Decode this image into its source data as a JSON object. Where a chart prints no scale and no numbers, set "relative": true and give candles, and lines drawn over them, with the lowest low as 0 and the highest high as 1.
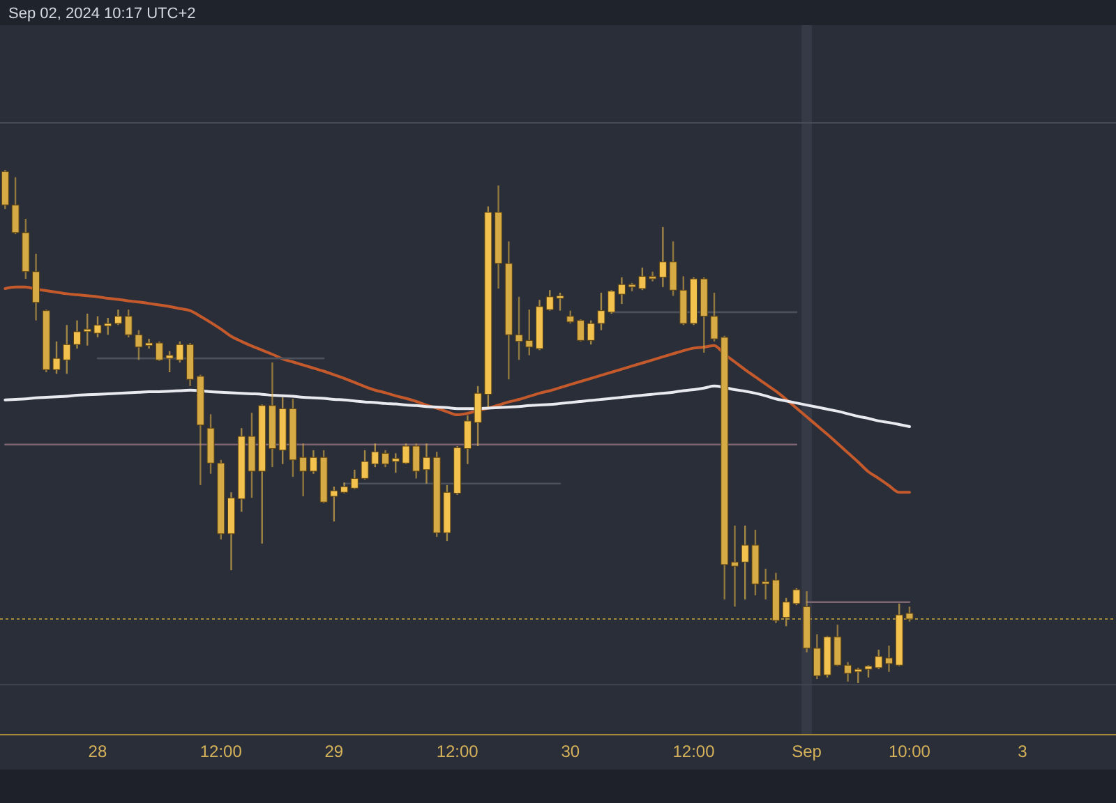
{
  "chart_data": {
    "type": "candlestick",
    "relative": true,
    "categories": [
      null,
      null,
      null,
      null,
      null,
      null,
      null,
      null,
      null,
      "28",
      null,
      null,
      null,
      null,
      null,
      null,
      null,
      null,
      null,
      null,
      null,
      "12:00",
      null,
      null,
      null,
      null,
      null,
      null,
      null,
      null,
      null,
      null,
      "29",
      null,
      null,
      null,
      null,
      null,
      null,
      null,
      null,
      null,
      null,
      null,
      "12:00",
      null,
      null,
      null,
      null,
      null,
      null,
      null,
      null,
      null,
      null,
      "30",
      null,
      null,
      null,
      null,
      null,
      null,
      null,
      null,
      null,
      null,
      null,
      "12:00",
      null,
      null,
      null,
      null,
      null,
      null,
      null,
      null,
      null,
      null,
      "Sep",
      null,
      null,
      null,
      null,
      null,
      null,
      null,
      null,
      null,
      "10:00",
      null,
      null,
      null,
      null,
      null,
      null,
      null,
      null,
      null,
      null,
      "3"
    ],
    "ohlc": [
      [
        0.997,
        1.0,
        0.924,
        0.932
      ],
      [
        0.932,
        0.986,
        0.875,
        0.878
      ],
      [
        0.878,
        0.905,
        0.788,
        0.802
      ],
      [
        0.802,
        0.837,
        0.707,
        0.742
      ],
      [
        0.726,
        0.728,
        0.606,
        0.611
      ],
      [
        0.611,
        0.666,
        0.603,
        0.633
      ],
      [
        0.63,
        0.698,
        0.603,
        0.66
      ],
      [
        0.66,
        0.707,
        0.652,
        0.685
      ],
      [
        0.685,
        0.72,
        0.658,
        0.69
      ],
      [
        0.682,
        0.715,
        0.674,
        0.698
      ],
      [
        0.696,
        0.712,
        0.679,
        0.701
      ],
      [
        0.701,
        0.728,
        0.698,
        0.715
      ],
      [
        0.715,
        0.728,
        0.674,
        0.679
      ],
      [
        0.679,
        0.688,
        0.63,
        0.655
      ],
      [
        0.658,
        0.671,
        0.652,
        0.663
      ],
      [
        0.663,
        0.666,
        0.628,
        0.63
      ],
      [
        0.633,
        0.647,
        0.606,
        0.639
      ],
      [
        0.63,
        0.666,
        0.625,
        0.66
      ],
      [
        0.66,
        0.663,
        0.579,
        0.592
      ],
      [
        0.598,
        0.601,
        0.386,
        0.503
      ],
      [
        0.497,
        0.524,
        0.408,
        0.429
      ],
      [
        0.429,
        0.435,
        0.28,
        0.291
      ],
      [
        0.291,
        0.372,
        0.22,
        0.361
      ],
      [
        0.359,
        0.497,
        0.334,
        0.481
      ],
      [
        0.481,
        0.527,
        0.361,
        0.413
      ],
      [
        0.413,
        0.543,
        0.272,
        0.541
      ],
      [
        0.541,
        0.625,
        0.421,
        0.457
      ],
      [
        0.454,
        0.557,
        0.427,
        0.535
      ],
      [
        0.535,
        0.554,
        0.402,
        0.435
      ],
      [
        0.44,
        0.467,
        0.364,
        0.413
      ],
      [
        0.413,
        0.454,
        0.408,
        0.44
      ],
      [
        0.44,
        0.454,
        0.351,
        0.353
      ],
      [
        0.364,
        0.383,
        0.315,
        0.375
      ],
      [
        0.372,
        0.391,
        0.37,
        0.383
      ],
      [
        0.38,
        0.416,
        0.378,
        0.399
      ],
      [
        0.399,
        0.454,
        0.397,
        0.432
      ],
      [
        0.427,
        0.467,
        0.421,
        0.451
      ],
      [
        0.448,
        0.454,
        0.421,
        0.427
      ],
      [
        0.432,
        0.448,
        0.41,
        0.438
      ],
      [
        0.429,
        0.467,
        0.427,
        0.462
      ],
      [
        0.462,
        0.467,
        0.399,
        0.413
      ],
      [
        0.416,
        0.467,
        0.389,
        0.44
      ],
      [
        0.44,
        0.451,
        0.285,
        0.293
      ],
      [
        0.293,
        0.386,
        0.277,
        0.372
      ],
      [
        0.37,
        0.462,
        0.367,
        0.459
      ],
      [
        0.457,
        0.522,
        0.427,
        0.511
      ],
      [
        0.508,
        0.579,
        0.462,
        0.565
      ],
      [
        0.563,
        0.929,
        0.538,
        0.918
      ],
      [
        0.918,
        0.97,
        0.769,
        0.818
      ],
      [
        0.818,
        0.861,
        0.592,
        0.679
      ],
      [
        0.679,
        0.753,
        0.63,
        0.666
      ],
      [
        0.668,
        0.728,
        0.639,
        0.655
      ],
      [
        0.652,
        0.747,
        0.649,
        0.734
      ],
      [
        0.728,
        0.766,
        0.726,
        0.753
      ],
      [
        0.75,
        0.761,
        0.726,
        0.755
      ],
      [
        0.715,
        0.726,
        0.701,
        0.704
      ],
      [
        0.707,
        0.709,
        0.666,
        0.668
      ],
      [
        0.668,
        0.707,
        0.66,
        0.701
      ],
      [
        0.701,
        0.761,
        0.688,
        0.726
      ],
      [
        0.723,
        0.766,
        0.72,
        0.764
      ],
      [
        0.758,
        0.791,
        0.739,
        0.777
      ],
      [
        0.777,
        0.78,
        0.764,
        0.772
      ],
      [
        0.769,
        0.81,
        0.766,
        0.793
      ],
      [
        0.793,
        0.802,
        0.783,
        0.788
      ],
      [
        0.791,
        0.889,
        0.772,
        0.821
      ],
      [
        0.821,
        0.861,
        0.755,
        0.766
      ],
      [
        0.766,
        0.793,
        0.698,
        0.701
      ],
      [
        0.701,
        0.791,
        0.698,
        0.788
      ],
      [
        0.788,
        0.791,
        0.644,
        0.715
      ],
      [
        0.715,
        0.761,
        0.666,
        0.671
      ],
      [
        0.674,
        0.677,
        0.163,
        0.231
      ],
      [
        0.236,
        0.307,
        0.149,
        0.228
      ],
      [
        0.236,
        0.307,
        0.163,
        0.269
      ],
      [
        0.269,
        0.299,
        0.171,
        0.193
      ],
      [
        0.198,
        0.223,
        0.163,
        0.193
      ],
      [
        0.201,
        0.215,
        0.117,
        0.122
      ],
      [
        0.128,
        0.166,
        0.111,
        0.158
      ],
      [
        0.155,
        0.185,
        0.152,
        0.182
      ],
      [
        0.149,
        0.179,
        0.06,
        0.068
      ],
      [
        0.068,
        0.095,
        0.008,
        0.014
      ],
      [
        0.016,
        0.092,
        0.011,
        0.09
      ],
      [
        0.09,
        0.114,
        0.033,
        0.035
      ],
      [
        0.035,
        0.041,
        0.003,
        0.019
      ],
      [
        0.022,
        0.03,
        0.0,
        0.027
      ],
      [
        0.027,
        0.035,
        0.011,
        0.033
      ],
      [
        0.03,
        0.065,
        0.027,
        0.052
      ],
      [
        0.049,
        0.073,
        0.022,
        0.038
      ],
      [
        0.035,
        0.155,
        0.033,
        0.133
      ],
      [
        0.136,
        0.149,
        0.12,
        0.125
      ],
      null,
      null,
      null,
      null,
      null,
      null,
      null,
      null,
      null,
      null,
      null
    ],
    "colors": [
      "#d6aa45",
      "#d6aa45",
      "#d6aa45",
      "#d6aa45",
      "#d6aa45",
      "#f2c14e",
      "#f2c14e",
      "#f2c14e",
      "#f2c14e",
      "#f2c14e",
      "#f2c14e",
      "#f2c14e",
      "#d6aa45",
      "#d6aa45",
      "#f2c14e",
      "#d6aa45",
      "#f2c14e",
      "#f2c14e",
      "#d6aa45",
      "#d6aa45",
      "#d6aa45",
      "#d6aa45",
      "#f2c14e",
      "#f2c14e",
      "#d6aa45",
      "#f2c14e",
      "#d6aa45",
      "#f2c14e",
      "#d6aa45",
      "#d6aa45",
      "#f2c14e",
      "#d6aa45",
      "#f2c14e",
      "#f2c14e",
      "#f2c14e",
      "#f2c14e",
      "#f2c14e",
      "#d6aa45",
      "#f2c14e",
      "#f2c14e",
      "#d6aa45",
      "#f2c14e",
      "#d6aa45",
      "#f2c14e",
      "#f2c14e",
      "#f2c14e",
      "#f2c14e",
      "#f2c14e",
      "#d6aa45",
      "#d6aa45",
      "#d6aa45",
      "#d6aa45",
      "#f2c14e",
      "#f2c14e",
      "#f2c14e",
      "#d6aa45",
      "#d6aa45",
      "#f2c14e",
      "#f2c14e",
      "#f2c14e",
      "#f2c14e",
      "#d6aa45",
      "#f2c14e",
      "#d6aa45",
      "#f2c14e",
      "#d6aa45",
      "#d6aa45",
      "#f2c14e",
      "#d6aa45",
      "#d6aa45",
      "#d6aa45",
      "#d6aa45",
      "#f2c14e",
      "#d6aa45",
      "#d6aa45",
      "#d6aa45",
      "#f2c14e",
      "#f2c14e",
      "#d6aa45",
      "#d6aa45",
      "#f2c14e",
      "#d6aa45",
      "#d6aa45",
      "#f2c14e",
      "#f2c14e",
      "#f2c14e",
      "#d6aa45",
      "#f2c14e",
      "#d6aa45",
      null,
      null,
      null,
      null,
      null,
      null,
      null,
      null,
      null,
      null,
      null
    ],
    "series": [
      {
        "type": "line",
        "color": "#c45a2c",
        "values": [
          0.769,
          0.772,
          0.772,
          0.768,
          0.765,
          0.762,
          0.759,
          0.757,
          0.755,
          0.753,
          0.75,
          0.748,
          0.745,
          0.743,
          0.74,
          0.737,
          0.734,
          0.73,
          0.726,
          0.715,
          0.703,
          0.69,
          0.676,
          0.666,
          0.657,
          0.649,
          0.641,
          0.632,
          0.626,
          0.62,
          0.614,
          0.608,
          0.601,
          0.594,
          0.586,
          0.578,
          0.571,
          0.566,
          0.56,
          0.555,
          0.549,
          0.542,
          0.536,
          0.529,
          0.523,
          0.526,
          0.531,
          0.536,
          0.542,
          0.548,
          0.553,
          0.559,
          0.565,
          0.57,
          0.576,
          0.582,
          0.588,
          0.594,
          0.6,
          0.606,
          0.612,
          0.618,
          0.624,
          0.63,
          0.636,
          0.642,
          0.648,
          0.653,
          0.655,
          0.658,
          0.641,
          0.626,
          0.611,
          0.597,
          0.583,
          0.569,
          0.553,
          0.536,
          0.519,
          0.502,
          0.485,
          0.467,
          0.449,
          0.431,
          0.412,
          0.399,
          0.385,
          0.372,
          0.372,
          null,
          null,
          null,
          null,
          null,
          null,
          null,
          null,
          null,
          null,
          null
        ]
      },
      {
        "type": "line",
        "color": "#e8eaf0",
        "values": [
          0.552,
          0.553,
          0.554,
          0.556,
          0.557,
          0.558,
          0.559,
          0.561,
          0.562,
          0.563,
          0.564,
          0.565,
          0.566,
          0.567,
          0.568,
          0.568,
          0.569,
          0.57,
          0.571,
          0.57,
          0.568,
          0.567,
          0.566,
          0.565,
          0.564,
          0.563,
          0.561,
          0.56,
          0.559,
          0.557,
          0.556,
          0.555,
          0.553,
          0.552,
          0.55,
          0.548,
          0.547,
          0.545,
          0.544,
          0.542,
          0.541,
          0.539,
          0.538,
          0.537,
          0.535,
          0.535,
          0.535,
          0.536,
          0.537,
          0.538,
          0.539,
          0.541,
          0.542,
          0.543,
          0.545,
          0.547,
          0.549,
          0.551,
          0.553,
          0.555,
          0.557,
          0.559,
          0.561,
          0.563,
          0.565,
          0.567,
          0.57,
          0.572,
          0.575,
          0.579,
          0.576,
          0.572,
          0.569,
          0.565,
          0.56,
          0.554,
          0.55,
          0.546,
          0.542,
          0.538,
          0.534,
          0.53,
          0.525,
          0.52,
          0.516,
          0.511,
          0.508,
          0.504,
          0.5,
          null,
          null,
          null,
          null,
          null,
          null,
          null,
          null,
          null,
          null,
          null
        ]
      },
      {
        "type": "line",
        "color": "#4b505d",
        "values": [
          null,
          null,
          null,
          null,
          null,
          null,
          null,
          null,
          null,
          0.633,
          0.633,
          0.633,
          0.633,
          0.633,
          0.633,
          0.633,
          0.633,
          0.633,
          0.633,
          0.633,
          0.633,
          0.633,
          0.633,
          0.633,
          0.633,
          0.633,
          0.633,
          0.633,
          0.633,
          0.633,
          0.633,
          0.633,
          null,
          null,
          null,
          null,
          null,
          null,
          null,
          null,
          null,
          null,
          null,
          null,
          null,
          null,
          null,
          null,
          null,
          null,
          null,
          null,
          null,
          null,
          null,
          null,
          null,
          null,
          null,
          null,
          null,
          null,
          null,
          null,
          null,
          null,
          null,
          null,
          null,
          null,
          null,
          null,
          null,
          null,
          null,
          null,
          null,
          null,
          null,
          null,
          null,
          null,
          null,
          null,
          null,
          null,
          null,
          null,
          null,
          null,
          null,
          null,
          null,
          null,
          null,
          null,
          null,
          null,
          null,
          null
        ]
      },
      {
        "type": "line",
        "color": "#4b505d",
        "values": [
          null,
          null,
          null,
          null,
          null,
          null,
          null,
          null,
          null,
          null,
          null,
          null,
          null,
          null,
          null,
          null,
          null,
          null,
          null,
          null,
          null,
          null,
          null,
          null,
          null,
          null,
          null,
          null,
          null,
          null,
          null,
          null,
          null,
          null,
          null,
          null,
          null,
          null,
          null,
          null,
          null,
          null,
          null,
          null,
          null,
          null,
          null,
          null,
          null,
          null,
          null,
          null,
          null,
          null,
          null,
          null,
          null,
          null,
          null,
          0.723,
          0.723,
          0.723,
          0.723,
          0.723,
          0.723,
          0.723,
          0.723,
          0.723,
          0.723,
          0.723,
          0.723,
          0.723,
          0.723,
          0.723,
          0.723,
          0.723,
          0.723,
          0.723,
          null,
          null,
          null,
          null,
          null,
          null,
          null,
          null,
          null,
          null,
          null,
          null,
          null,
          null,
          null,
          null,
          null,
          null,
          null,
          null,
          null,
          null
        ]
      },
      {
        "type": "line",
        "color": "#4b505d",
        "values": [
          null,
          null,
          null,
          null,
          null,
          null,
          null,
          null,
          null,
          null,
          null,
          null,
          null,
          null,
          null,
          null,
          null,
          null,
          null,
          null,
          null,
          null,
          null,
          null,
          null,
          null,
          null,
          null,
          null,
          null,
          null,
          null,
          null,
          0.389,
          0.389,
          0.389,
          0.389,
          0.389,
          0.389,
          0.389,
          0.389,
          0.389,
          0.389,
          0.389,
          0.389,
          0.389,
          0.389,
          0.389,
          0.389,
          0.389,
          0.389,
          0.389,
          0.389,
          0.389,
          0.389,
          null,
          null,
          null,
          null,
          null,
          null,
          null,
          null,
          null,
          null,
          null,
          null,
          null,
          null,
          null,
          null,
          null,
          null,
          null,
          null,
          null,
          null,
          null,
          null,
          null,
          null,
          null,
          null,
          null,
          null,
          null,
          null,
          null,
          null,
          null,
          null,
          null,
          null,
          null,
          null,
          null,
          null,
          null,
          null,
          null
        ]
      },
      {
        "type": "line",
        "color": "#7d6572",
        "values": [
          0.465,
          0.465,
          0.465,
          0.465,
          0.465,
          0.465,
          0.465,
          0.465,
          0.465,
          0.465,
          0.465,
          0.465,
          0.465,
          0.465,
          0.465,
          0.465,
          0.465,
          0.465,
          0.465,
          0.465,
          0.465,
          0.465,
          0.465,
          0.465,
          0.465,
          0.465,
          0.465,
          0.465,
          0.465,
          0.465,
          0.465,
          0.465,
          0.465,
          0.465,
          0.465,
          0.465,
          0.465,
          0.465,
          0.465,
          0.465,
          0.465,
          0.465,
          0.465,
          0.465,
          0.465,
          0.465,
          0.465,
          0.465,
          0.465,
          0.465,
          0.465,
          0.465,
          0.465,
          0.465,
          0.465,
          0.465,
          0.465,
          0.465,
          0.465,
          0.465,
          0.465,
          0.465,
          0.465,
          0.465,
          0.465,
          0.465,
          0.465,
          0.465,
          0.465,
          0.465,
          0.465,
          0.465,
          0.465,
          0.465,
          0.465,
          0.465,
          0.465,
          0.465,
          null,
          null,
          null,
          null,
          null,
          null,
          null,
          null,
          null,
          null,
          null,
          null,
          null,
          null,
          null,
          null,
          null,
          null,
          null,
          null,
          null,
          null
        ]
      },
      {
        "type": "line",
        "color": "#7d6572",
        "values": [
          null,
          null,
          null,
          null,
          null,
          null,
          null,
          null,
          null,
          null,
          null,
          null,
          null,
          null,
          null,
          null,
          null,
          null,
          null,
          null,
          null,
          null,
          null,
          null,
          null,
          null,
          null,
          null,
          null,
          null,
          null,
          null,
          null,
          null,
          null,
          null,
          null,
          null,
          null,
          null,
          null,
          null,
          null,
          null,
          null,
          null,
          null,
          null,
          null,
          null,
          null,
          null,
          null,
          null,
          null,
          null,
          null,
          null,
          null,
          null,
          null,
          null,
          null,
          null,
          null,
          null,
          null,
          null,
          null,
          null,
          null,
          null,
          null,
          null,
          null,
          null,
          null,
          null,
          0.158,
          0.158,
          0.158,
          0.158,
          0.158,
          0.158,
          0.158,
          0.158,
          0.158,
          0.158,
          0.158,
          null,
          null,
          null,
          null,
          null,
          null,
          null,
          null,
          null,
          null,
          null
        ]
      }
    ],
    "ref_lines": [
      {
        "axis": "y",
        "value": 1.092,
        "color": "#4b505d"
      },
      {
        "axis": "y",
        "value": 0.125,
        "color": "#a8893e",
        "line_style": "dotted"
      },
      {
        "axis": "y",
        "value": -0.003,
        "color": "#424652"
      }
    ],
    "bands": [
      {
        "axis": "x",
        "from": "Sep",
        "to": "Sep",
        "color": "#363a46"
      }
    ],
    "annotations": [
      "Sep 02, 2024 10:17 UTC+2"
    ]
  }
}
